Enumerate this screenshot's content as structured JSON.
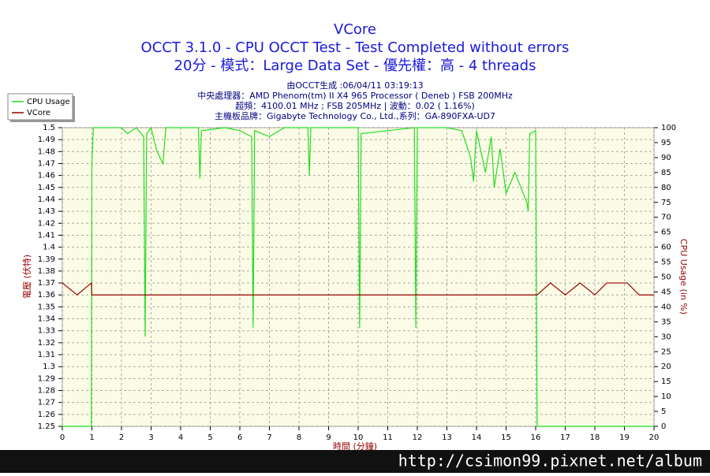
{
  "chart_data": {
    "type": "line",
    "title": "VCore",
    "subtitle": [
      "OCCT 3.1.0 - CPU OCCT Test - Test Completed without errors",
      "20分 - 模式：Large Data Set - 優先權：高 - 4 threads"
    ],
    "info": [
      "由OCCT生成 :06/04/11 03:19:13",
      "中央處理器：AMD Phenom(tm) II X4 965 Processor ( Deneb ) FSB 200MHz",
      "超頻：4100.01 MHz ; FSB 205MHz | 波動：0.02 ( 1.16%)",
      "主機板品牌：Gigabyte Technology Co., Ltd.,系列：GA-890FXA-UD7"
    ],
    "xlabel": "時間 (分鐘)",
    "ylabel": "電壓 (伏特)",
    "y2label": "CPU Usage (in %)",
    "xlim": [
      0,
      20
    ],
    "xticks": [
      0,
      1,
      2,
      3,
      4,
      5,
      6,
      7,
      8,
      9,
      10,
      11,
      12,
      13,
      14,
      15,
      16,
      17,
      18,
      19,
      20
    ],
    "ylim": [
      1.25,
      1.5
    ],
    "yticks": [
      1.25,
      1.26,
      1.27,
      1.28,
      1.29,
      1.3,
      1.31,
      1.32,
      1.33,
      1.34,
      1.35,
      1.36,
      1.37,
      1.38,
      1.39,
      1.4,
      1.41,
      1.42,
      1.43,
      1.44,
      1.45,
      1.46,
      1.47,
      1.48,
      1.49,
      1.5
    ],
    "y2lim": [
      0,
      100
    ],
    "y2ticks": [
      0,
      5,
      10,
      15,
      20,
      25,
      30,
      35,
      40,
      45,
      50,
      55,
      60,
      65,
      70,
      75,
      80,
      85,
      90,
      95,
      100
    ],
    "grid": true,
    "legend": "top-left",
    "x": [
      0,
      0.5,
      0.98,
      1.0,
      1.05,
      1.5,
      2.0,
      2.2,
      2.5,
      2.75,
      2.8,
      2.85,
      3.0,
      3.2,
      3.4,
      3.5,
      4.0,
      4.6,
      4.65,
      4.7,
      5.5,
      6.0,
      6.4,
      6.45,
      6.5,
      7.0,
      7.5,
      8.3,
      8.35,
      8.4,
      9.0,
      10.0,
      10.05,
      10.1,
      11.0,
      11.9,
      11.95,
      12.0,
      13.0,
      13.5,
      13.8,
      13.9,
      14.0,
      14.3,
      14.5,
      14.6,
      14.8,
      15.0,
      15.3,
      15.5,
      15.7,
      15.75,
      15.8,
      16.0,
      16.05,
      16.5,
      17.0,
      17.5,
      18.0,
      18.4,
      19.1,
      19.5,
      20
    ],
    "series": [
      {
        "name": "CPU Usage",
        "color": "#22dd22",
        "axis": "y2",
        "values": [
          0,
          0,
          0,
          88,
          100,
          100,
          100,
          98,
          100,
          97,
          30,
          98,
          100,
          92,
          88,
          100,
          100,
          100,
          83,
          99,
          100,
          99,
          97,
          33,
          99,
          97,
          100,
          100,
          84,
          100,
          100,
          100,
          33,
          98,
          99,
          100,
          33,
          100,
          100,
          99,
          90,
          82,
          99,
          85,
          97,
          80,
          93,
          78,
          85,
          80,
          75,
          72,
          98,
          99,
          0,
          0,
          0,
          0,
          0,
          0,
          0,
          0,
          0
        ]
      },
      {
        "name": "VCore",
        "color": "#990000",
        "values": [
          1.37,
          1.36,
          1.37,
          1.36,
          1.36,
          1.36,
          1.36,
          1.36,
          1.36,
          1.36,
          1.36,
          1.36,
          1.36,
          1.36,
          1.36,
          1.36,
          1.36,
          1.36,
          1.36,
          1.36,
          1.36,
          1.36,
          1.36,
          1.36,
          1.36,
          1.36,
          1.36,
          1.36,
          1.36,
          1.36,
          1.36,
          1.36,
          1.36,
          1.36,
          1.36,
          1.36,
          1.36,
          1.36,
          1.36,
          1.36,
          1.36,
          1.36,
          1.36,
          1.36,
          1.36,
          1.36,
          1.36,
          1.36,
          1.36,
          1.36,
          1.36,
          1.36,
          1.36,
          1.36,
          1.36,
          1.37,
          1.36,
          1.37,
          1.36,
          1.37,
          1.37,
          1.36,
          1.36
        ]
      }
    ]
  },
  "watermark": "http://csimon99.pixnet.net/album"
}
